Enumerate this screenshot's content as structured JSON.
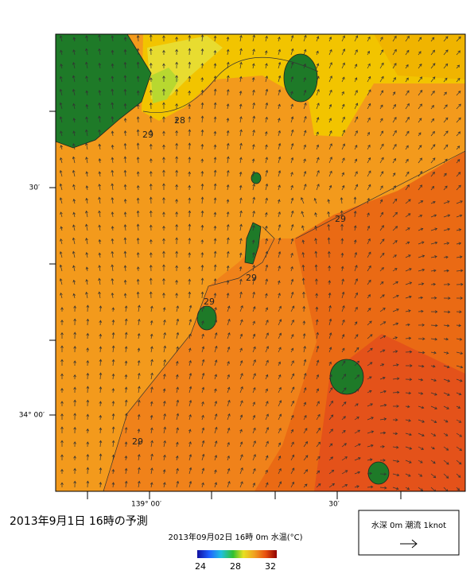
{
  "map": {
    "title": "2013年9月1日 16時の予測",
    "subtitle": "2013年09月02日 16時 0m 水温(°C)",
    "lat_labels": [
      "30′",
      "34° 00′"
    ],
    "lon_labels": [
      "139° 00′",
      "30′"
    ],
    "contour_labels": [
      "28",
      "29",
      "29",
      "29",
      "29",
      "29"
    ],
    "colorbar_labels": [
      "24",
      "28",
      "32"
    ],
    "legend": "水深 0m 潮流 1knot"
  }
}
